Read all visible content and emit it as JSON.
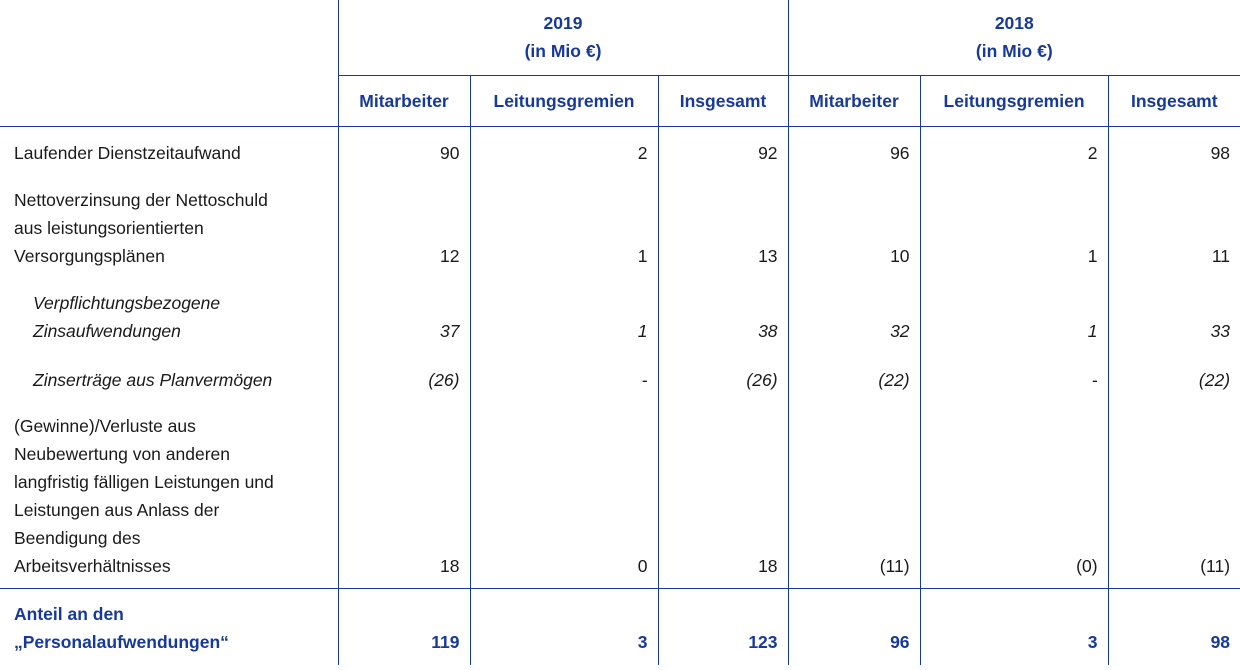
{
  "table": {
    "header": {
      "groups": [
        {
          "year": "2019",
          "unit": "(in Mio €)"
        },
        {
          "year": "2018",
          "unit": "(in Mio €)"
        }
      ],
      "columns": [
        "Mitarbeiter",
        "Leitungsgremien",
        "Insgesamt",
        "Mitarbeiter",
        "Leitungsgremien",
        "Insgesamt"
      ]
    },
    "rows": [
      {
        "label": [
          "Laufender Dienstzeitaufwand"
        ],
        "values": [
          "90",
          "2",
          "92",
          "96",
          "2",
          "98"
        ]
      },
      {
        "label": [
          "Nettoverzinsung der Nettoschuld",
          "aus leistungsorientierten",
          "Versorgungsplänen"
        ],
        "values": [
          "12",
          "1",
          "13",
          "10",
          "1",
          "11"
        ]
      },
      {
        "label": [
          "Verpflichtungsbezogene",
          "Zinsaufwendungen"
        ],
        "values": [
          "37",
          "1",
          "38",
          "32",
          "1",
          "33"
        ],
        "emphasis": "italic"
      },
      {
        "label": [
          "Zinserträge aus Planvermögen"
        ],
        "values": [
          "(26)",
          "-",
          "(26)",
          "(22)",
          "-",
          "(22)"
        ],
        "emphasis": "italic"
      },
      {
        "label": [
          "(Gewinne)/Verluste aus",
          "Neubewertung von anderen",
          "langfristig fälligen Leistungen und",
          "Leistungen aus Anlass der",
          "Beendigung des",
          "Arbeitsverhältnisses"
        ],
        "values": [
          "18",
          "0",
          "18",
          "(11)",
          "(0)",
          "(11)"
        ]
      },
      {
        "label": [
          "Anteil an den",
          "„Personalaufwendungen“"
        ],
        "values": [
          "119",
          "3",
          "123",
          "96",
          "3",
          "98"
        ],
        "emphasis": "bold"
      }
    ]
  }
}
